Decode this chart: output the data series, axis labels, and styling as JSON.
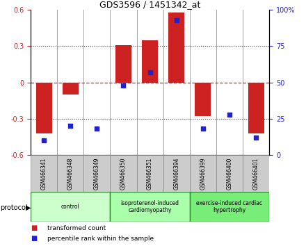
{
  "title": "GDS3596 / 1451342_at",
  "samples": [
    "GSM466341",
    "GSM466348",
    "GSM466349",
    "GSM466350",
    "GSM466351",
    "GSM466394",
    "GSM466399",
    "GSM466400",
    "GSM466401"
  ],
  "bar_values": [
    -0.42,
    -0.1,
    0.0,
    0.31,
    0.35,
    0.58,
    -0.28,
    0.0,
    -0.42
  ],
  "scatter_values": [
    10,
    20,
    18,
    48,
    57,
    93,
    18,
    28,
    12
  ],
  "ylim_left": [
    -0.6,
    0.6
  ],
  "ylim_right": [
    0,
    100
  ],
  "yticks_left": [
    -0.6,
    -0.3,
    0.0,
    0.3,
    0.6
  ],
  "ytick_labels_left": [
    "-0.6",
    "-0.3",
    "0",
    "0.3",
    "0.6"
  ],
  "yticks_right": [
    0,
    25,
    50,
    75,
    100
  ],
  "ytick_labels_right": [
    "0",
    "25",
    "50",
    "75",
    "100%"
  ],
  "bar_color": "#cc2222",
  "scatter_color": "#2222cc",
  "zero_line_color": "#cc2222",
  "dotted_line_color": "#333333",
  "groups": [
    {
      "label": "control",
      "start": 0,
      "end": 3,
      "color": "#ccffcc"
    },
    {
      "label": "isoproterenol-induced\ncardiomyopathy",
      "start": 3,
      "end": 6,
      "color": "#aaffaa"
    },
    {
      "label": "exercise-induced cardiac\nhypertrophy",
      "start": 6,
      "end": 9,
      "color": "#77ee77"
    }
  ],
  "protocol_label": "protocol",
  "legend_items": [
    {
      "label": "transformed count",
      "color": "#cc2222"
    },
    {
      "label": "percentile rank within the sample",
      "color": "#2222cc"
    }
  ],
  "background_plot": "#ffffff",
  "background_label": "#cccccc",
  "group_border_color": "#338833",
  "fig_bg": "#ffffff",
  "bar_width": 0.6
}
